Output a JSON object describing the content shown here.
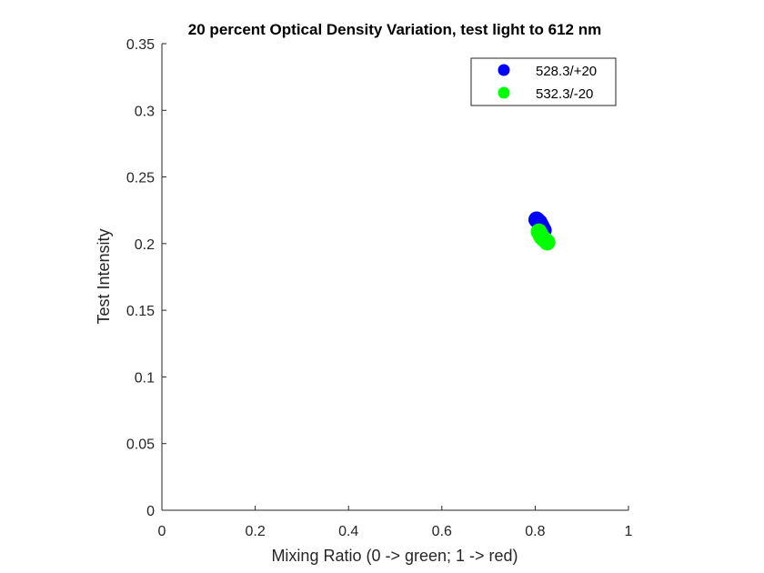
{
  "chart_data": {
    "type": "scatter",
    "title": "20 percent Optical Density Variation, test light to 612 nm",
    "xlabel": "Mixing Ratio (0 -> green; 1 -> red)",
    "ylabel": "Test Intensity",
    "xlim": [
      0,
      1
    ],
    "ylim": [
      0,
      0.35
    ],
    "xticks": [
      0,
      0.2,
      0.4,
      0.6,
      0.8,
      1
    ],
    "xtick_labels": [
      "0",
      "0.2",
      "0.4",
      "0.6",
      "0.8",
      "1"
    ],
    "yticks": [
      0,
      0.05,
      0.1,
      0.15,
      0.2,
      0.25,
      0.3,
      0.35
    ],
    "ytick_labels": [
      "0",
      "0.05",
      "0.1",
      "0.15",
      "0.2",
      "0.25",
      "0.3",
      "0.35"
    ],
    "grid": false,
    "legend_position": "top-right",
    "series": [
      {
        "name": "528.3/+20",
        "color": "#0000ff",
        "x": [
          0.803,
          0.806,
          0.809,
          0.812,
          0.815,
          0.818
        ],
        "y": [
          0.218,
          0.217,
          0.216,
          0.214,
          0.212,
          0.21
        ]
      },
      {
        "name": "532.3/-20",
        "color": "#00ff00",
        "x": [
          0.808,
          0.811,
          0.814,
          0.817,
          0.82,
          0.823,
          0.826
        ],
        "y": [
          0.209,
          0.207,
          0.205,
          0.204,
          0.203,
          0.202,
          0.201
        ]
      }
    ]
  }
}
